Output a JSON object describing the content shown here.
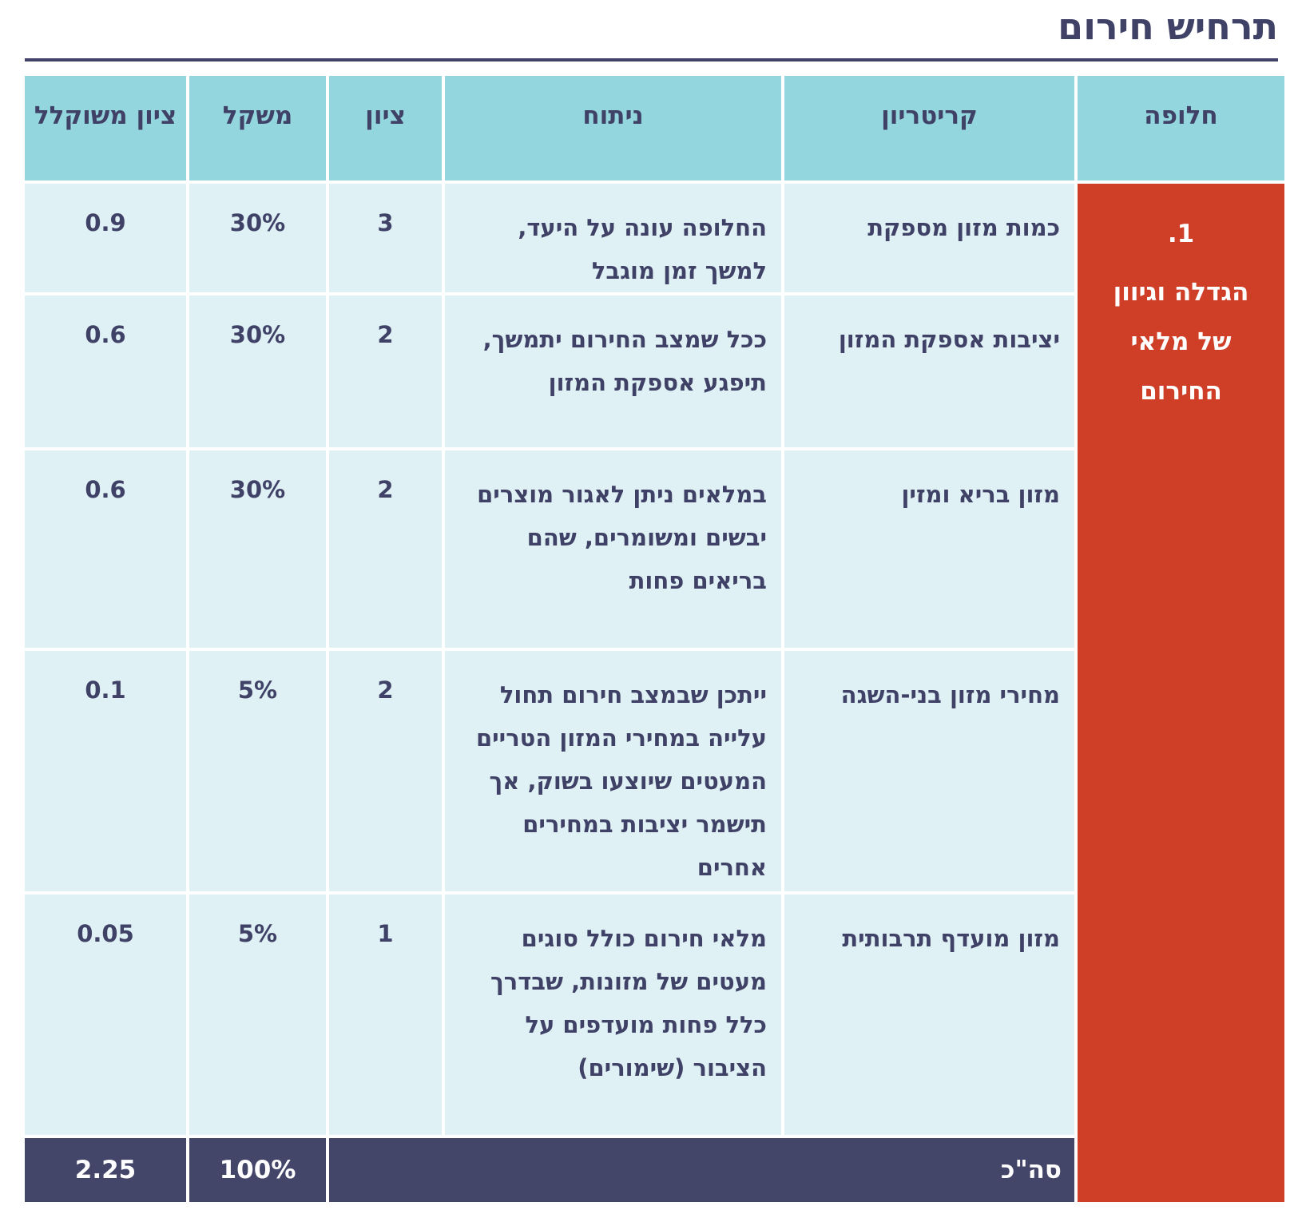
{
  "title": "תרחיש חירום",
  "headers": {
    "alternative": "חלופה",
    "criterion": "קריטריון",
    "analysis": "ניתוח",
    "score": "ציון",
    "weight": "משקל",
    "weighted_score": "ציון משוקלל"
  },
  "alternative": {
    "number": "1.",
    "name": "הגדלה וגיוון של מלאי החירום"
  },
  "rows": [
    {
      "criterion": "כמות מזון מספקת",
      "analysis": "החלופה עונה על היעד, למשך זמן מוגבל",
      "score": "3",
      "weight": "30%",
      "weighted_score": "0.9"
    },
    {
      "criterion": "יציבות אספקת המזון",
      "analysis": "ככל שמצב החירום יתמשך, תיפגע אספקת המזון",
      "score": "2",
      "weight": "30%",
      "weighted_score": "0.6"
    },
    {
      "criterion": "מזון בריא ומזין",
      "analysis": "במלאים ניתן לאגור מוצרים יבשים ומשומרים, שהם בריאים פחות",
      "score": "2",
      "weight": "30%",
      "weighted_score": "0.6"
    },
    {
      "criterion": "מחירי מזון בני-השגה",
      "analysis": "ייתכן שבמצב חירום תחול עלייה במחירי המזון הטריים המעטים שיוצעו בשוק, אך תישמר יציבות במחירים אחרים",
      "score": "2",
      "weight": "5%",
      "weighted_score": "0.1"
    },
    {
      "criterion": "מזון מועדף תרבותית",
      "analysis": "מלאי חירום כולל סוגים מעטים של מזונות, שבדרך כלל פחות מועדפים על הציבור (שימורים)",
      "score": "1",
      "weight": "5%",
      "weighted_score": "0.05"
    }
  ],
  "total": {
    "label": "סה\"כ",
    "weight": "100%",
    "weighted_score": "2.25"
  },
  "colors": {
    "header_bg": "#94d6de",
    "row_bg": "#dff1f5",
    "alternative_bg": "#cf3e26",
    "total_bg": "#434569",
    "text": "#3f4266"
  }
}
